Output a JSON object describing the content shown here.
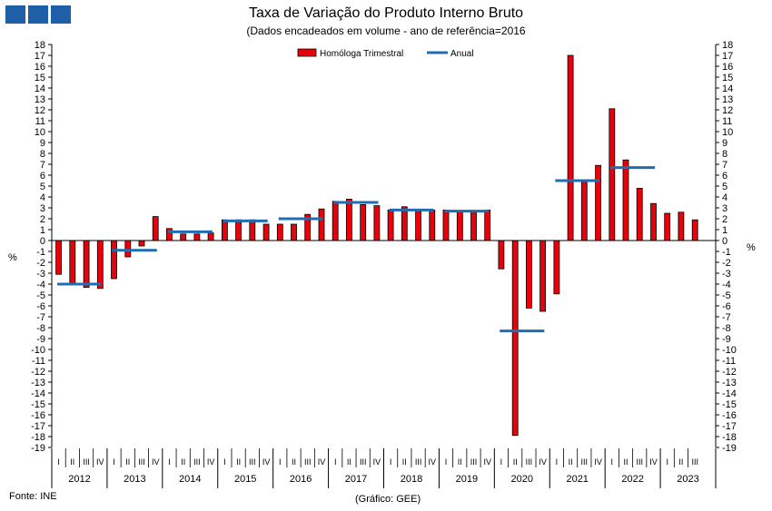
{
  "title": "Taxa de Variação do Produto Interno Bruto",
  "subtitle": "(Dados encadeados em volume  - ano de referência=2016",
  "source": "Fonte: INE",
  "credit": "(Gráfico: GEE)",
  "colors": {
    "bar": "#e8000b",
    "bar_stroke": "#000000",
    "line": "#1f6db3",
    "logo": "#1f5fa8"
  },
  "chart_data": {
    "type": "bar",
    "y_unit_label": "%",
    "ylim": [
      -19,
      18
    ],
    "quarter_labels": [
      "I",
      "II",
      "III",
      "IV"
    ],
    "years": [
      "2012",
      "2013",
      "2014",
      "2015",
      "2016",
      "2017",
      "2018",
      "2019",
      "2020",
      "2021",
      "2022",
      "2023"
    ],
    "series": [
      {
        "name": "Homóloga Trimestral",
        "kind": "bar",
        "values": [
          -3.1,
          -3.9,
          -4.3,
          -4.4,
          -3.5,
          -1.5,
          -0.5,
          2.2,
          1.1,
          0.6,
          0.6,
          0.7,
          1.9,
          1.9,
          1.9,
          1.5,
          1.5,
          1.5,
          2.4,
          2.9,
          3.6,
          3.8,
          3.3,
          3.2,
          2.8,
          3.1,
          2.8,
          2.8,
          2.8,
          2.7,
          2.6,
          2.8,
          -2.6,
          -17.9,
          -6.2,
          -6.5,
          -4.9,
          17.0,
          5.4,
          6.9,
          12.1,
          7.4,
          4.8,
          3.4,
          2.5,
          2.6,
          1.9
        ]
      },
      {
        "name": "Anual",
        "kind": "annual-line",
        "values": [
          -4.0,
          -0.9,
          0.8,
          1.8,
          2.0,
          3.5,
          2.8,
          2.7,
          -8.3,
          5.5,
          6.7
        ]
      }
    ]
  }
}
